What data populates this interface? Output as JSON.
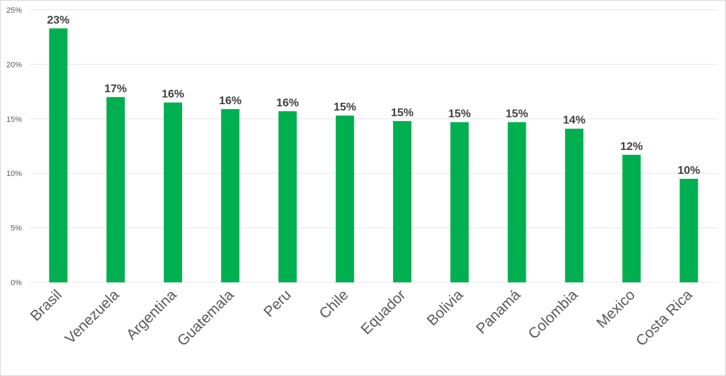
{
  "chart_data": {
    "type": "bar",
    "title": "",
    "xlabel": "",
    "ylabel": "",
    "categories": [
      "Brasil",
      "Venezuela",
      "Argentina",
      "Guatemala",
      "Peru",
      "Chile",
      "Equador",
      "Bolivia",
      "Panamá",
      "Colombia",
      "Mexico",
      "Costa Rica"
    ],
    "values": [
      23.3,
      17.0,
      16.5,
      15.9,
      15.7,
      15.3,
      14.8,
      14.7,
      14.7,
      14.1,
      11.7,
      9.5
    ],
    "data_labels": [
      "23%",
      "17%",
      "16%",
      "16%",
      "16%",
      "15%",
      "15%",
      "15%",
      "15%",
      "14%",
      "12%",
      "10%"
    ],
    "yticks": [
      0,
      5,
      10,
      15,
      20,
      25
    ],
    "ytick_labels": [
      "0%",
      "5%",
      "10%",
      "15%",
      "20%",
      "25%"
    ],
    "ylim": [
      0,
      25
    ],
    "grid": true,
    "legend": "none",
    "bar_color": "#00b050",
    "gridline_color": "#e6e6e6",
    "text_color": "#595959",
    "label_color": "#404040"
  }
}
